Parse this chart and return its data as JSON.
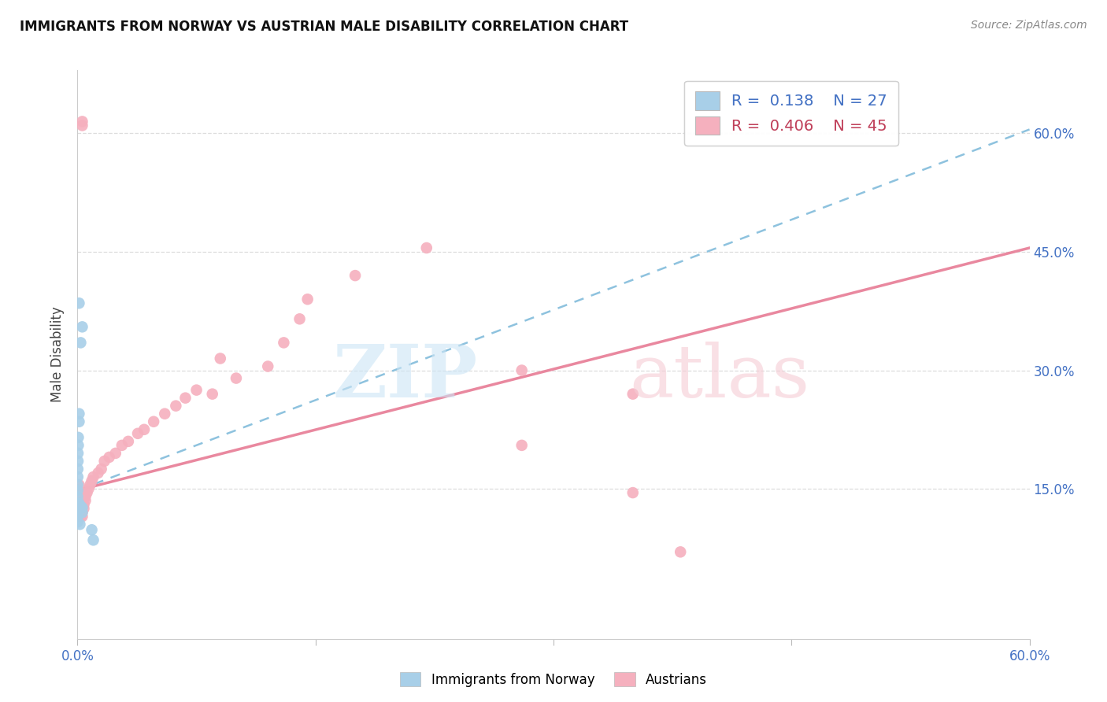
{
  "title": "IMMIGRANTS FROM NORWAY VS AUSTRIAN MALE DISABILITY CORRELATION CHART",
  "source": "Source: ZipAtlas.com",
  "ylabel": "Male Disability",
  "legend_blue_R": "0.138",
  "legend_blue_N": "27",
  "legend_pink_R": "0.406",
  "legend_pink_N": "45",
  "xlim": [
    0.0,
    0.6
  ],
  "ylim": [
    -0.04,
    0.68
  ],
  "blue_scatter_color": "#a8cfe8",
  "pink_scatter_color": "#f5b0be",
  "blue_line_color": "#7ab8d9",
  "pink_line_color": "#e8829a",
  "y_ticks": [
    0.15,
    0.3,
    0.45,
    0.6
  ],
  "x_ticks": [
    0.0,
    0.15,
    0.3,
    0.45,
    0.6
  ],
  "blue_line_x0": 0.0,
  "blue_line_y0": 0.148,
  "blue_line_x1": 0.6,
  "blue_line_y1": 0.605,
  "pink_line_x0": 0.0,
  "pink_line_y0": 0.148,
  "pink_line_x1": 0.6,
  "pink_line_y1": 0.455,
  "norway_x": [
    0.001,
    0.003,
    0.002,
    0.001,
    0.001,
    0.0005,
    0.0005,
    0.0003,
    0.0003,
    0.0002,
    0.0002,
    0.0001,
    0.0001,
    0.0001,
    0.0001,
    0.0001,
    0.0001,
    0.0001,
    0.0001,
    0.0008,
    0.001,
    0.002,
    0.003,
    0.003,
    0.0015,
    0.009,
    0.01
  ],
  "norway_y": [
    0.385,
    0.355,
    0.335,
    0.245,
    0.235,
    0.215,
    0.205,
    0.195,
    0.185,
    0.175,
    0.165,
    0.155,
    0.148,
    0.14,
    0.132,
    0.128,
    0.123,
    0.115,
    0.108,
    0.132,
    0.13,
    0.128,
    0.126,
    0.12,
    0.105,
    0.098,
    0.085
  ],
  "austria_x": [
    0.003,
    0.003,
    0.22,
    0.175,
    0.145,
    0.14,
    0.13,
    0.12,
    0.1,
    0.09,
    0.085,
    0.075,
    0.068,
    0.062,
    0.055,
    0.048,
    0.042,
    0.038,
    0.032,
    0.028,
    0.024,
    0.02,
    0.017,
    0.015,
    0.013,
    0.01,
    0.009,
    0.008,
    0.007,
    0.006,
    0.005,
    0.005,
    0.004,
    0.004,
    0.003,
    0.003,
    0.002,
    0.002,
    0.001,
    0.001,
    0.35,
    0.28,
    0.35,
    0.28,
    0.38
  ],
  "austria_y": [
    0.615,
    0.61,
    0.455,
    0.42,
    0.39,
    0.365,
    0.335,
    0.305,
    0.29,
    0.315,
    0.27,
    0.275,
    0.265,
    0.255,
    0.245,
    0.235,
    0.225,
    0.22,
    0.21,
    0.205,
    0.195,
    0.19,
    0.185,
    0.175,
    0.17,
    0.165,
    0.16,
    0.155,
    0.15,
    0.145,
    0.14,
    0.135,
    0.13,
    0.125,
    0.12,
    0.115,
    0.145,
    0.115,
    0.155,
    0.125,
    0.145,
    0.205,
    0.27,
    0.3,
    0.07
  ]
}
